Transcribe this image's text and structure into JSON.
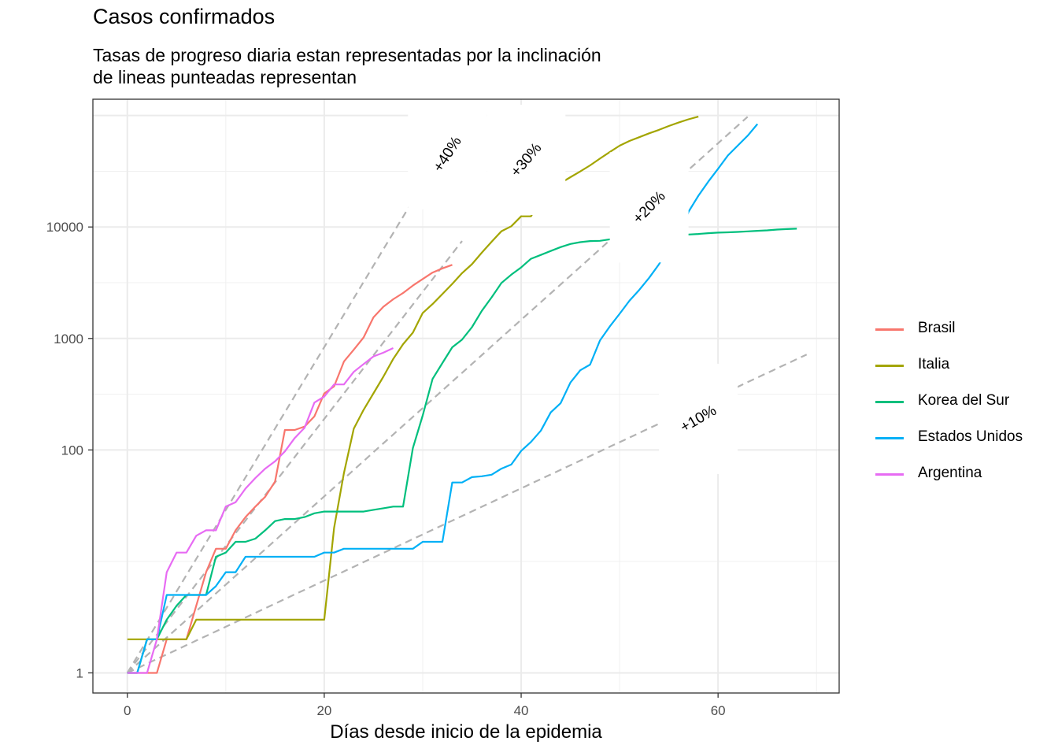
{
  "chart_data": {
    "type": "line",
    "title": "Casos confirmados",
    "subtitle_lines": [
      "Tasas de progreso diaria estan representadas por la inclinación",
      "de lineas punteadas representan"
    ],
    "xlabel": "Días desde inicio de la epidemia",
    "ylabel": "",
    "xlim": [
      -3.5,
      72.3
    ],
    "ylim": [
      0.66,
      140000
    ],
    "y_scale": "log10",
    "x_ticks": [
      0,
      20,
      40,
      60
    ],
    "y_ticks": [
      1,
      100,
      1000,
      10000
    ],
    "y_tick_labels": [
      "1",
      "100",
      "1000",
      "10000"
    ],
    "grid": true,
    "legend_position": "right",
    "series": [
      {
        "name": "Brasil",
        "color": "#F8766D",
        "points": [
          [
            0,
            1
          ],
          [
            1,
            1
          ],
          [
            2,
            1
          ],
          [
            3,
            1
          ],
          [
            4,
            2
          ],
          [
            5,
            2
          ],
          [
            6,
            2
          ],
          [
            7,
            4
          ],
          [
            8,
            8
          ],
          [
            9,
            13
          ],
          [
            10,
            13
          ],
          [
            11,
            19
          ],
          [
            12,
            25
          ],
          [
            13,
            31
          ],
          [
            14,
            38
          ],
          [
            15,
            52
          ],
          [
            16,
            151
          ],
          [
            17,
            151
          ],
          [
            18,
            162
          ],
          [
            19,
            200
          ],
          [
            20,
            321
          ],
          [
            21,
            372
          ],
          [
            22,
            621
          ],
          [
            23,
            793
          ],
          [
            24,
            1021
          ],
          [
            25,
            1546
          ],
          [
            26,
            1924
          ],
          [
            27,
            2247
          ],
          [
            28,
            2554
          ],
          [
            29,
            2985
          ],
          [
            30,
            3417
          ],
          [
            31,
            3904
          ],
          [
            32,
            4256
          ],
          [
            33,
            4579
          ]
        ]
      },
      {
        "name": "Italia",
        "color": "#A3A500",
        "points": [
          [
            0,
            2
          ],
          [
            1,
            2
          ],
          [
            2,
            2
          ],
          [
            3,
            2
          ],
          [
            4,
            2
          ],
          [
            5,
            2
          ],
          [
            6,
            2
          ],
          [
            7,
            3
          ],
          [
            8,
            3
          ],
          [
            9,
            3
          ],
          [
            10,
            3
          ],
          [
            11,
            3
          ],
          [
            12,
            3
          ],
          [
            13,
            3
          ],
          [
            14,
            3
          ],
          [
            15,
            3
          ],
          [
            16,
            3
          ],
          [
            17,
            3
          ],
          [
            18,
            3
          ],
          [
            19,
            3
          ],
          [
            20,
            3
          ],
          [
            21,
            20
          ],
          [
            22,
            62
          ],
          [
            23,
            155
          ],
          [
            24,
            229
          ],
          [
            25,
            322
          ],
          [
            26,
            453
          ],
          [
            27,
            655
          ],
          [
            28,
            888
          ],
          [
            29,
            1128
          ],
          [
            30,
            1694
          ],
          [
            31,
            2036
          ],
          [
            32,
            2502
          ],
          [
            33,
            3089
          ],
          [
            34,
            3858
          ],
          [
            35,
            4636
          ],
          [
            36,
            5883
          ],
          [
            37,
            7375
          ],
          [
            38,
            9172
          ],
          [
            39,
            10149
          ],
          [
            40,
            12462
          ],
          [
            41,
            12462
          ],
          [
            42,
            17660
          ],
          [
            43,
            21157
          ],
          [
            44,
            24747
          ],
          [
            45,
            27980
          ],
          [
            46,
            31506
          ],
          [
            47,
            35713
          ],
          [
            48,
            41035
          ],
          [
            49,
            47021
          ],
          [
            50,
            53578
          ],
          [
            51,
            59138
          ],
          [
            52,
            63927
          ],
          [
            53,
            69176
          ],
          [
            54,
            74386
          ],
          [
            55,
            80589
          ],
          [
            56,
            86498
          ],
          [
            57,
            92472
          ],
          [
            58,
            97689
          ]
        ]
      },
      {
        "name": "Korea del Sur",
        "color": "#00BF7D",
        "points": [
          [
            0,
            1
          ],
          [
            1,
            1
          ],
          [
            2,
            2
          ],
          [
            3,
            2
          ],
          [
            4,
            3
          ],
          [
            5,
            4
          ],
          [
            6,
            5
          ],
          [
            7,
            5
          ],
          [
            8,
            5
          ],
          [
            9,
            11
          ],
          [
            10,
            12
          ],
          [
            11,
            15
          ],
          [
            12,
            15
          ],
          [
            13,
            16
          ],
          [
            14,
            19
          ],
          [
            15,
            23
          ],
          [
            16,
            24
          ],
          [
            17,
            24
          ],
          [
            18,
            25
          ],
          [
            19,
            27
          ],
          [
            20,
            28
          ],
          [
            21,
            28
          ],
          [
            22,
            28
          ],
          [
            23,
            28
          ],
          [
            24,
            28
          ],
          [
            25,
            29
          ],
          [
            26,
            30
          ],
          [
            27,
            31
          ],
          [
            28,
            31
          ],
          [
            29,
            104
          ],
          [
            30,
            204
          ],
          [
            31,
            433
          ],
          [
            32,
            602
          ],
          [
            33,
            833
          ],
          [
            34,
            977
          ],
          [
            35,
            1261
          ],
          [
            36,
            1766
          ],
          [
            37,
            2337
          ],
          [
            38,
            3150
          ],
          [
            39,
            3736
          ],
          [
            40,
            4335
          ],
          [
            41,
            5186
          ],
          [
            42,
            5621
          ],
          [
            43,
            6088
          ],
          [
            44,
            6593
          ],
          [
            45,
            7041
          ],
          [
            46,
            7314
          ],
          [
            47,
            7478
          ],
          [
            48,
            7513
          ],
          [
            49,
            7755
          ],
          [
            50,
            7869
          ],
          [
            51,
            7979
          ],
          [
            52,
            8086
          ],
          [
            53,
            8162
          ],
          [
            54,
            8236
          ],
          [
            55,
            8320
          ],
          [
            56,
            8413
          ],
          [
            57,
            8565
          ],
          [
            58,
            8652
          ],
          [
            59,
            8799
          ],
          [
            60,
            8897
          ],
          [
            61,
            8961
          ],
          [
            62,
            9037
          ],
          [
            63,
            9137
          ],
          [
            64,
            9241
          ],
          [
            65,
            9332
          ],
          [
            66,
            9478
          ],
          [
            67,
            9583
          ],
          [
            68,
            9661
          ]
        ]
      },
      {
        "name": "Estados Unidos",
        "color": "#00B0F6",
        "points": [
          [
            0,
            1
          ],
          [
            1,
            1
          ],
          [
            2,
            2
          ],
          [
            3,
            2
          ],
          [
            4,
            5
          ],
          [
            5,
            5
          ],
          [
            6,
            5
          ],
          [
            7,
            5
          ],
          [
            8,
            5
          ],
          [
            9,
            6
          ],
          [
            10,
            8
          ],
          [
            11,
            8
          ],
          [
            12,
            11
          ],
          [
            13,
            11
          ],
          [
            14,
            11
          ],
          [
            15,
            11
          ],
          [
            16,
            11
          ],
          [
            17,
            11
          ],
          [
            18,
            11
          ],
          [
            19,
            11
          ],
          [
            20,
            12
          ],
          [
            21,
            12
          ],
          [
            22,
            13
          ],
          [
            23,
            13
          ],
          [
            24,
            13
          ],
          [
            25,
            13
          ],
          [
            26,
            13
          ],
          [
            27,
            13
          ],
          [
            28,
            13
          ],
          [
            29,
            13
          ],
          [
            30,
            15
          ],
          [
            31,
            15
          ],
          [
            32,
            15
          ],
          [
            33,
            51
          ],
          [
            34,
            51
          ],
          [
            35,
            57
          ],
          [
            36,
            58
          ],
          [
            37,
            60
          ],
          [
            38,
            68
          ],
          [
            39,
            74
          ],
          [
            40,
            98
          ],
          [
            41,
            118
          ],
          [
            42,
            149
          ],
          [
            43,
            217
          ],
          [
            44,
            262
          ],
          [
            45,
            402
          ],
          [
            46,
            518
          ],
          [
            47,
            583
          ],
          [
            48,
            959
          ],
          [
            49,
            1281
          ],
          [
            50,
            1663
          ],
          [
            51,
            2179
          ],
          [
            52,
            2727
          ],
          [
            53,
            3499
          ],
          [
            54,
            4632
          ],
          [
            55,
            6421
          ],
          [
            56,
            7786
          ],
          [
            57,
            13680
          ],
          [
            58,
            19101
          ],
          [
            59,
            25493
          ],
          [
            60,
            33276
          ],
          [
            61,
            43847
          ],
          [
            62,
            53740
          ],
          [
            63,
            65778
          ],
          [
            64,
            83836
          ]
        ]
      },
      {
        "name": "Argentina",
        "color": "#E76BF3",
        "points": [
          [
            0,
            1
          ],
          [
            1,
            1
          ],
          [
            2,
            1
          ],
          [
            3,
            2
          ],
          [
            4,
            8
          ],
          [
            5,
            12
          ],
          [
            6,
            12
          ],
          [
            7,
            17
          ],
          [
            8,
            19
          ],
          [
            9,
            19
          ],
          [
            10,
            31
          ],
          [
            11,
            34
          ],
          [
            12,
            45
          ],
          [
            13,
            56
          ],
          [
            14,
            68
          ],
          [
            15,
            79
          ],
          [
            16,
            97
          ],
          [
            17,
            128
          ],
          [
            18,
            158
          ],
          [
            19,
            266
          ],
          [
            20,
            301
          ],
          [
            21,
            387
          ],
          [
            22,
            387
          ],
          [
            23,
            502
          ],
          [
            24,
            589
          ],
          [
            25,
            690
          ],
          [
            26,
            745
          ],
          [
            27,
            820
          ]
        ]
      }
    ],
    "reference_lines": [
      {
        "label": "+10%",
        "rate": 0.1,
        "x_end": 69
      },
      {
        "label": "+20%",
        "rate": 0.2,
        "x_end": 63
      },
      {
        "label": "+30%",
        "rate": 0.3,
        "x_end": 34
      },
      {
        "label": "+40%",
        "rate": 0.4,
        "x_end": 34
      }
    ]
  }
}
